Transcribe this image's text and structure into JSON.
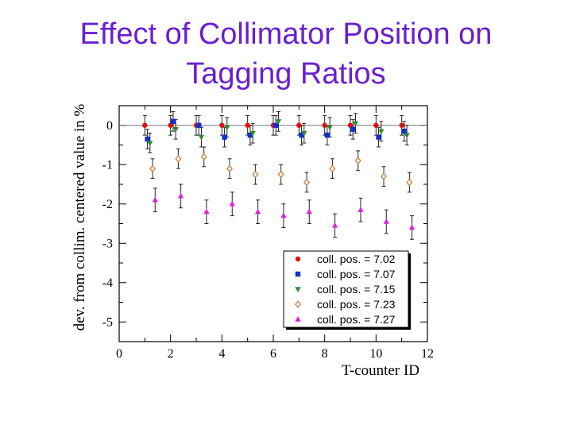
{
  "slide": {
    "title_line1": "Effect of Collimator Position on",
    "title_line2": "Tagging Ratios"
  },
  "chart_data": {
    "type": "scatter",
    "title": "",
    "xlabel": "T-counter ID",
    "ylabel": "dev. from collim. centered value in %",
    "xlim": [
      0,
      12
    ],
    "ylim": [
      -5.5,
      0.5
    ],
    "xticks": [
      0,
      2,
      4,
      6,
      8,
      10,
      12
    ],
    "yticks": [
      0,
      -1,
      -2,
      -3,
      -4,
      -5
    ],
    "reference_line_y": 0,
    "legend_position": "bottom-right",
    "series": [
      {
        "name": "coll. pos. = 7.02",
        "color": "#e01010",
        "marker": "circle",
        "points": [
          {
            "x": 1.0,
            "y": 0.0,
            "err": 0.25
          },
          {
            "x": 2.0,
            "y": 0.0,
            "err": 0.25
          },
          {
            "x": 3.0,
            "y": 0.0,
            "err": 0.25
          },
          {
            "x": 4.0,
            "y": 0.0,
            "err": 0.25
          },
          {
            "x": 5.0,
            "y": 0.0,
            "err": 0.25
          },
          {
            "x": 6.0,
            "y": 0.0,
            "err": 0.25
          },
          {
            "x": 7.0,
            "y": 0.0,
            "err": 0.25
          },
          {
            "x": 8.0,
            "y": 0.0,
            "err": 0.25
          },
          {
            "x": 9.0,
            "y": 0.0,
            "err": 0.25
          },
          {
            "x": 10.0,
            "y": 0.0,
            "err": 0.25
          },
          {
            "x": 11.0,
            "y": 0.0,
            "err": 0.25
          }
        ]
      },
      {
        "name": "coll. pos. = 7.07",
        "color": "#1030c8",
        "marker": "square",
        "points": [
          {
            "x": 1.1,
            "y": -0.35,
            "err": 0.25
          },
          {
            "x": 2.1,
            "y": 0.1,
            "err": 0.25
          },
          {
            "x": 3.1,
            "y": 0.0,
            "err": 0.25
          },
          {
            "x": 4.1,
            "y": -0.3,
            "err": 0.25
          },
          {
            "x": 5.1,
            "y": -0.25,
            "err": 0.25
          },
          {
            "x": 6.1,
            "y": 0.0,
            "err": 0.25
          },
          {
            "x": 7.1,
            "y": -0.25,
            "err": 0.25
          },
          {
            "x": 8.1,
            "y": -0.25,
            "err": 0.25
          },
          {
            "x": 9.1,
            "y": -0.1,
            "err": 0.25
          },
          {
            "x": 10.1,
            "y": -0.3,
            "err": 0.25
          },
          {
            "x": 11.1,
            "y": -0.15,
            "err": 0.25
          }
        ]
      },
      {
        "name": "coll. pos. = 7.15",
        "color": "#2e8b2e",
        "marker": "triangle-down",
        "points": [
          {
            "x": 1.2,
            "y": -0.45,
            "err": 0.25
          },
          {
            "x": 2.2,
            "y": -0.1,
            "err": 0.25
          },
          {
            "x": 3.2,
            "y": -0.3,
            "err": 0.25
          },
          {
            "x": 4.2,
            "y": -0.05,
            "err": 0.25
          },
          {
            "x": 5.2,
            "y": -0.2,
            "err": 0.25
          },
          {
            "x": 6.2,
            "y": 0.1,
            "err": 0.25
          },
          {
            "x": 7.2,
            "y": -0.2,
            "err": 0.25
          },
          {
            "x": 8.2,
            "y": -0.05,
            "err": 0.25
          },
          {
            "x": 9.2,
            "y": 0.05,
            "err": 0.25
          },
          {
            "x": 10.2,
            "y": -0.15,
            "err": 0.25
          },
          {
            "x": 11.2,
            "y": -0.25,
            "err": 0.25
          }
        ]
      },
      {
        "name": "coll. pos. = 7.23",
        "color": "#c87830",
        "marker": "diamond-open",
        "points": [
          {
            "x": 1.3,
            "y": -1.1,
            "err": 0.25
          },
          {
            "x": 2.3,
            "y": -0.85,
            "err": 0.25
          },
          {
            "x": 3.3,
            "y": -0.8,
            "err": 0.25
          },
          {
            "x": 4.3,
            "y": -1.1,
            "err": 0.25
          },
          {
            "x": 5.3,
            "y": -1.25,
            "err": 0.25
          },
          {
            "x": 6.3,
            "y": -1.25,
            "err": 0.25
          },
          {
            "x": 7.3,
            "y": -1.45,
            "err": 0.25
          },
          {
            "x": 8.3,
            "y": -1.1,
            "err": 0.25
          },
          {
            "x": 9.3,
            "y": -0.9,
            "err": 0.25
          },
          {
            "x": 10.3,
            "y": -1.3,
            "err": 0.25
          },
          {
            "x": 11.3,
            "y": -1.45,
            "err": 0.25
          }
        ]
      },
      {
        "name": "coll. pos. = 7.27",
        "color": "#e020e0",
        "marker": "triangle-up",
        "points": [
          {
            "x": 1.4,
            "y": -1.9,
            "err": 0.3
          },
          {
            "x": 2.4,
            "y": -1.8,
            "err": 0.3
          },
          {
            "x": 3.4,
            "y": -2.2,
            "err": 0.3
          },
          {
            "x": 4.4,
            "y": -2.0,
            "err": 0.3
          },
          {
            "x": 5.4,
            "y": -2.2,
            "err": 0.3
          },
          {
            "x": 6.4,
            "y": -2.3,
            "err": 0.3
          },
          {
            "x": 7.4,
            "y": -2.2,
            "err": 0.3
          },
          {
            "x": 8.4,
            "y": -2.55,
            "err": 0.3
          },
          {
            "x": 9.4,
            "y": -2.15,
            "err": 0.3
          },
          {
            "x": 10.4,
            "y": -2.45,
            "err": 0.3
          },
          {
            "x": 11.4,
            "y": -2.6,
            "err": 0.3
          }
        ]
      }
    ]
  }
}
